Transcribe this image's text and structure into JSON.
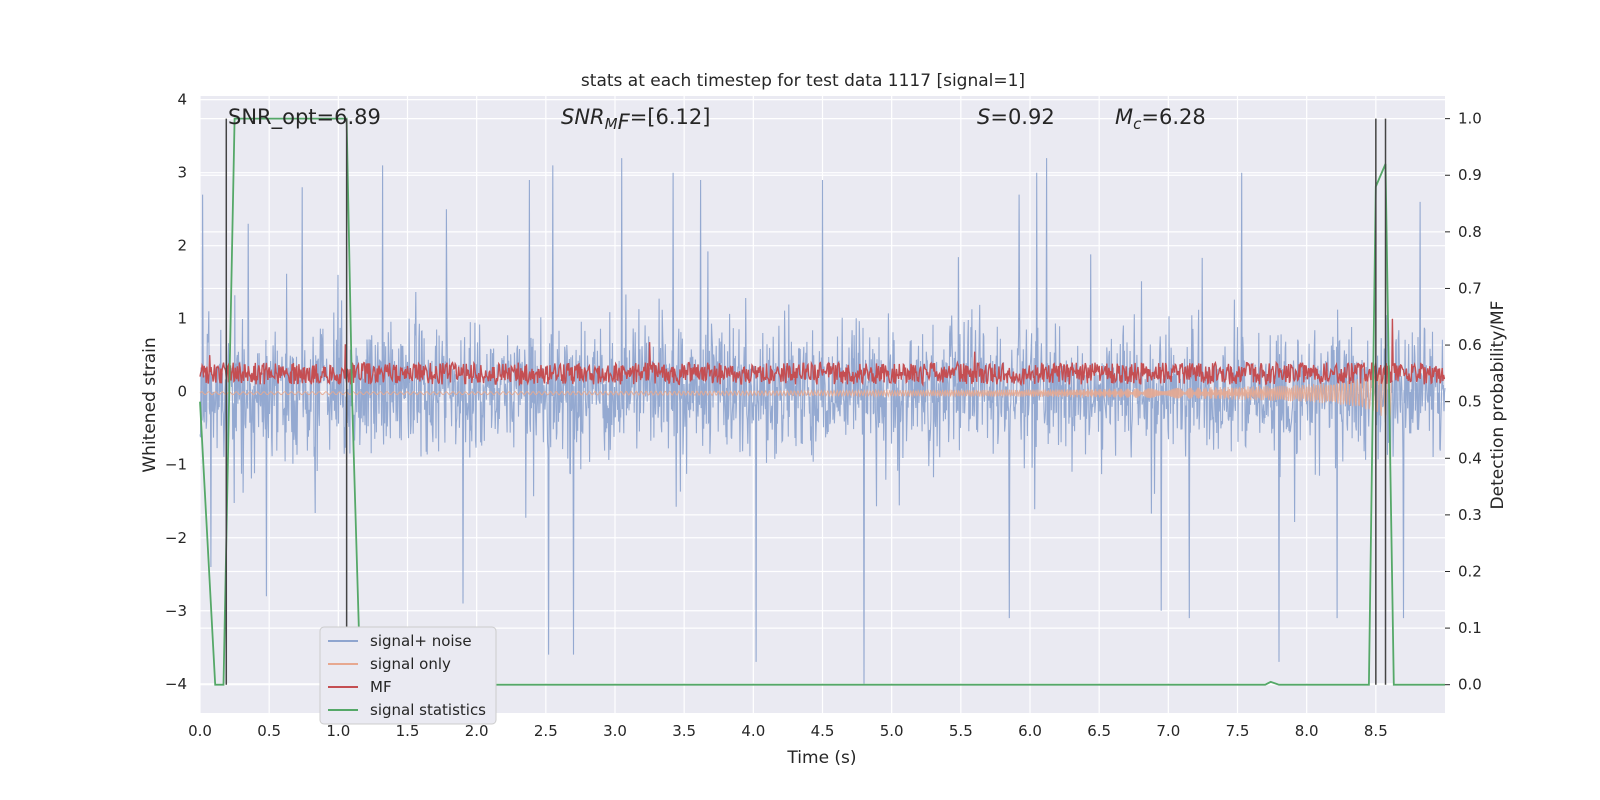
{
  "chart_data": {
    "type": "line",
    "title": "stats at each timestep for test data 1117 [signal=1]",
    "xlabel": "Time (s)",
    "ylabel": "Whitened strain",
    "ylabel_right": "Detection probability/MF",
    "xlim": [
      0.0,
      9.0
    ],
    "ylim": [
      -4.4,
      4.05
    ],
    "ylim_right": [
      -0.05,
      1.04
    ],
    "x_ticks": [
      "0.0",
      "0.5",
      "1.0",
      "1.5",
      "2.0",
      "2.5",
      "3.0",
      "3.5",
      "4.0",
      "4.5",
      "5.0",
      "5.5",
      "6.0",
      "6.5",
      "7.0",
      "7.5",
      "8.0",
      "8.5"
    ],
    "y_ticks": [
      "−4",
      "−3",
      "−2",
      "−1",
      "0",
      "1",
      "2",
      "3",
      "4"
    ],
    "y_ticks_right": [
      "0.0",
      "0.1",
      "0.2",
      "0.3",
      "0.4",
      "0.5",
      "0.6",
      "0.7",
      "0.8",
      "0.9",
      "1.0"
    ],
    "grid": true,
    "legend_position": "lower-left",
    "annotations": {
      "snr_opt": "SNR_opt=6.89",
      "snr_mf": "SNR_MF=[6.12]",
      "s": "S=0.92",
      "mc": "M_c=6.28"
    },
    "vertical_markers": [
      0.19,
      1.06,
      8.5,
      8.57
    ],
    "series": [
      {
        "name": "signal+ noise",
        "color": "#8fa5cf",
        "axis": "left",
        "description_envelope": {
          "low": -1.6,
          "high": 1.4
        },
        "spikes": [
          [
            0.02,
            2.7
          ],
          [
            0.35,
            2.3
          ],
          [
            0.74,
            2.8
          ],
          [
            1.32,
            3.1
          ],
          [
            1.78,
            2.5
          ],
          [
            2.38,
            2.9
          ],
          [
            2.55,
            3.1
          ],
          [
            3.05,
            3.2
          ],
          [
            3.42,
            3.0
          ],
          [
            3.62,
            2.9
          ],
          [
            4.5,
            2.9
          ],
          [
            5.92,
            2.7
          ],
          [
            6.05,
            3.0
          ],
          [
            6.12,
            3.2
          ],
          [
            7.53,
            3.0
          ],
          [
            8.82,
            2.6
          ],
          [
            0.08,
            -2.4
          ],
          [
            0.48,
            -2.8
          ],
          [
            1.9,
            -2.9
          ],
          [
            2.52,
            -3.6
          ],
          [
            2.7,
            -3.6
          ],
          [
            4.02,
            -3.7
          ],
          [
            4.8,
            -4.1
          ],
          [
            5.85,
            -3.1
          ],
          [
            6.95,
            -3.0
          ],
          [
            7.15,
            -3.1
          ],
          [
            7.8,
            -3.7
          ],
          [
            8.22,
            -3.1
          ],
          [
            8.7,
            -3.1
          ]
        ]
      },
      {
        "name": "signal only",
        "color": "#e7a890",
        "axis": "left",
        "x": [
          0.0,
          2.0,
          4.0,
          5.0,
          6.0,
          7.0,
          7.5,
          8.0,
          8.3,
          8.5,
          8.62
        ],
        "amplitude": [
          0.02,
          0.02,
          0.03,
          0.04,
          0.05,
          0.07,
          0.09,
          0.12,
          0.17,
          0.25,
          0.45
        ]
      },
      {
        "name": "MF",
        "color": "#c44e52",
        "axis": "left",
        "mean": 0.25,
        "spread": 0.15,
        "spikes": [
          [
            1.05,
            0.65
          ],
          [
            3.25,
            0.68
          ],
          [
            5.6,
            0.55
          ],
          [
            8.62,
            1.0
          ],
          [
            0.07,
            0.5
          ]
        ]
      },
      {
        "name": "signal statistics",
        "color": "#55a868",
        "axis": "right",
        "x": [
          0.0,
          0.11,
          0.17,
          0.25,
          1.04,
          1.06,
          1.1,
          1.16,
          7.7,
          7.74,
          7.8,
          8.45,
          8.5,
          8.57,
          8.63,
          9.0
        ],
        "y": [
          0.5,
          0.0,
          0.0,
          1.0,
          1.0,
          1.0,
          0.5,
          0.0,
          0.0,
          0.005,
          0.0,
          0.0,
          0.88,
          0.92,
          0.0,
          0.0
        ]
      }
    ]
  }
}
